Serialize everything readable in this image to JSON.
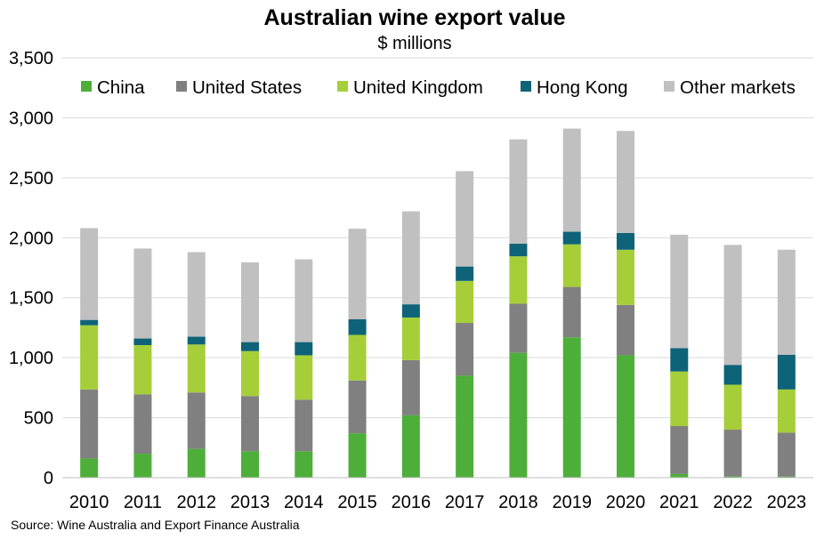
{
  "chart_data": {
    "type": "bar",
    "stacked": true,
    "title": "Australian wine export value",
    "subtitle": "$ millions",
    "xlabel": "",
    "ylabel": "",
    "ylim": [
      0,
      3500
    ],
    "yticks": [
      0,
      500,
      1000,
      1500,
      2000,
      2500,
      3000,
      3500
    ],
    "ytick_labels": [
      "0",
      "500",
      "1,000",
      "1,500",
      "2,000",
      "2,500",
      "3,000",
      "3,500"
    ],
    "grid": true,
    "legend_position": "top",
    "categories": [
      "2010",
      "2011",
      "2012",
      "2013",
      "2014",
      "2015",
      "2016",
      "2017",
      "2018",
      "2019",
      "2020",
      "2021",
      "2022",
      "2023"
    ],
    "series": [
      {
        "name": "China",
        "color": "#4EAE3A",
        "values": [
          160,
          200,
          240,
          220,
          220,
          370,
          520,
          850,
          1040,
          1170,
          1020,
          30,
          10,
          10
        ]
      },
      {
        "name": "United States",
        "color": "#808080",
        "values": [
          575,
          495,
          470,
          460,
          430,
          440,
          460,
          440,
          410,
          420,
          420,
          400,
          390,
          365
        ]
      },
      {
        "name": "United Kingdom",
        "color": "#A6CE39",
        "values": [
          535,
          410,
          400,
          375,
          370,
          380,
          355,
          350,
          395,
          355,
          460,
          455,
          375,
          360
        ]
      },
      {
        "name": "Hong Kong",
        "color": "#0E6378",
        "values": [
          45,
          55,
          65,
          75,
          110,
          130,
          110,
          120,
          105,
          105,
          140,
          195,
          165,
          290
        ]
      },
      {
        "name": "Other markets",
        "color": "#C0C0C0",
        "values": [
          765,
          750,
          705,
          665,
          690,
          755,
          775,
          795,
          870,
          860,
          850,
          945,
          1000,
          875
        ]
      }
    ],
    "source": "Source: Wine Australia and Export Finance Australia"
  }
}
